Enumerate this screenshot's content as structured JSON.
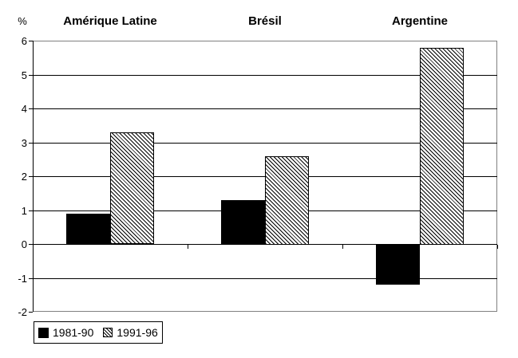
{
  "chart_data": {
    "type": "bar",
    "title": "",
    "ylabel": "%",
    "xlabel": "",
    "categories": [
      "Amérique Latine",
      "Brésil",
      "Argentine"
    ],
    "series": [
      {
        "name": "1981-90",
        "style": "solid-black",
        "values": [
          0.9,
          1.3,
          -1.2
        ]
      },
      {
        "name": "1991-96",
        "style": "diagonal-hatch",
        "values": [
          3.3,
          2.6,
          5.8
        ]
      }
    ],
    "ylim": [
      -2,
      6
    ],
    "yticks": [
      6,
      5,
      4,
      3,
      2,
      1,
      0,
      -1,
      -2
    ],
    "grid": true,
    "legend_position": "bottom-left",
    "colors": {
      "bar_solid": "#000000",
      "hatch_line": "#000000",
      "gridline": "#000000",
      "plot_frame": "#808080",
      "background": "#ffffff",
      "text": "#000000"
    }
  }
}
